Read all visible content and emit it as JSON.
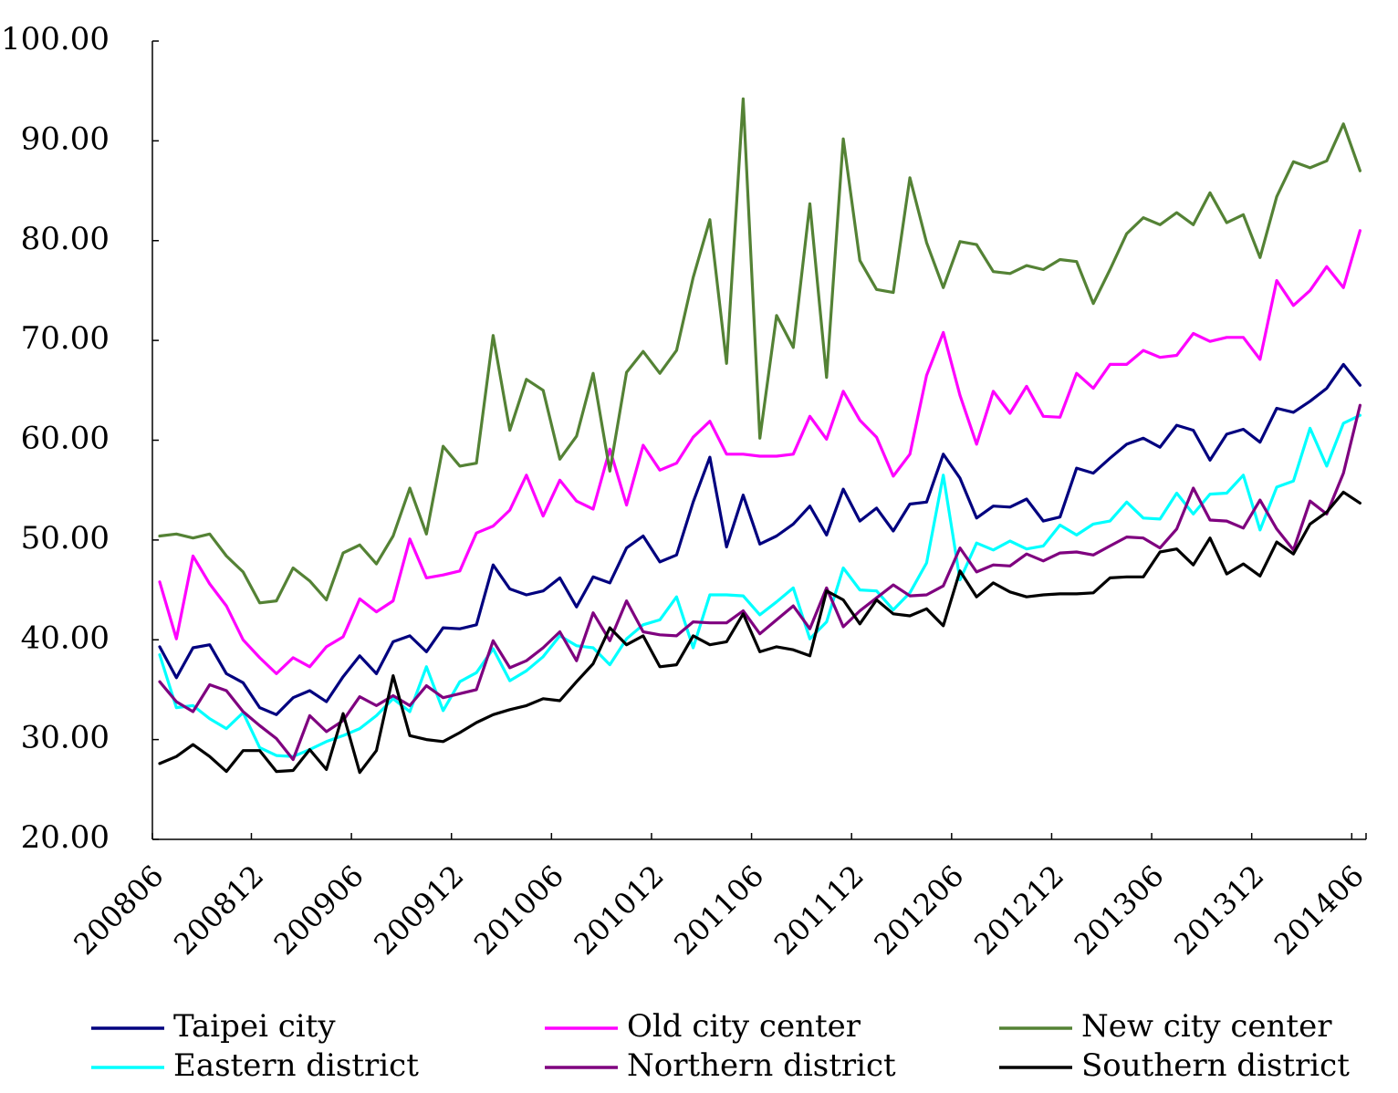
{
  "chart_data": {
    "type": "line",
    "title": "",
    "xlabel": "",
    "ylabel": "",
    "ylim": [
      20,
      100
    ],
    "yticks": [
      "20.00",
      "30.00",
      "40.00",
      "50.00",
      "60.00",
      "70.00",
      "80.00",
      "90.00",
      "100.00"
    ],
    "x_tick_labels": [
      "200806",
      "200812",
      "200906",
      "200912",
      "201006",
      "201012",
      "201106",
      "201112",
      "201206",
      "201212",
      "201306",
      "201312",
      "201406"
    ],
    "x_start": "200806",
    "x_end": "201407",
    "grid": false,
    "legend_position": "bottom",
    "series": [
      {
        "name": "Taipei city",
        "color": "#00007f",
        "values": [
          39.3,
          36.2,
          39.2,
          39.5,
          36.6,
          35.7,
          33.2,
          32.5,
          34.2,
          34.9,
          33.8,
          36.3,
          38.4,
          36.6,
          39.8,
          40.4,
          38.8,
          41.2,
          41.1,
          41.5,
          47.5,
          45.1,
          44.5,
          44.9,
          46.2,
          43.3,
          46.3,
          45.7,
          49.2,
          50.4,
          47.8,
          48.5,
          53.8,
          58.3,
          49.3,
          54.5,
          49.6,
          50.4,
          51.6,
          53.4,
          50.5,
          55.1,
          51.9,
          53.2,
          50.9,
          53.6,
          53.8,
          58.6,
          56.2,
          52.2,
          53.4,
          53.3,
          54.1,
          51.9,
          52.3,
          57.2,
          56.7,
          58.2,
          59.6,
          60.2,
          59.3,
          61.5,
          61.0,
          58.0,
          60.6,
          61.1,
          59.8,
          63.2,
          62.8,
          63.9,
          65.2,
          67.6,
          65.5
        ]
      },
      {
        "name": "Old city center",
        "color": "#ff00ff",
        "values": [
          45.8,
          40.1,
          48.4,
          45.6,
          43.4,
          40.0,
          38.2,
          36.6,
          38.2,
          37.3,
          39.3,
          40.3,
          44.1,
          42.8,
          43.9,
          50.1,
          46.2,
          46.5,
          46.9,
          50.7,
          51.4,
          53.0,
          56.5,
          52.4,
          56.0,
          53.9,
          53.1,
          59.1,
          53.5,
          59.5,
          57.0,
          57.7,
          60.3,
          61.9,
          58.6,
          58.6,
          58.4,
          58.4,
          58.6,
          62.4,
          60.1,
          64.9,
          62.0,
          60.3,
          56.4,
          58.6,
          66.5,
          70.8,
          64.5,
          59.6,
          64.9,
          62.7,
          65.4,
          62.4,
          62.3,
          66.7,
          65.2,
          67.6,
          67.6,
          69.0,
          68.3,
          68.5,
          70.7,
          69.9,
          70.3,
          70.3,
          68.1,
          76.0,
          73.5,
          75.0,
          77.4,
          75.3,
          81.0
        ]
      },
      {
        "name": "New city center",
        "color": "#548235",
        "values": [
          50.4,
          50.6,
          50.2,
          50.6,
          48.4,
          46.8,
          43.7,
          43.9,
          47.2,
          45.9,
          44.0,
          48.7,
          49.5,
          47.6,
          50.4,
          55.2,
          50.6,
          59.4,
          57.4,
          57.7,
          70.5,
          61.0,
          66.1,
          65.0,
          58.1,
          60.4,
          66.7,
          56.9,
          66.8,
          68.9,
          66.7,
          69.0,
          76.3,
          82.1,
          67.7,
          94.2,
          60.2,
          72.5,
          69.3,
          83.7,
          66.3,
          90.2,
          78.0,
          75.1,
          74.8,
          86.3,
          79.8,
          75.3,
          79.9,
          79.6,
          76.9,
          76.7,
          77.5,
          77.1,
          78.1,
          77.9,
          73.7,
          77.1,
          80.7,
          82.3,
          81.6,
          82.8,
          81.6,
          84.8,
          81.8,
          82.6,
          78.3,
          84.4,
          87.9,
          87.3,
          88.0,
          91.7,
          87.0
        ]
      },
      {
        "name": "Eastern district",
        "color": "#00ffff",
        "values": [
          38.5,
          33.2,
          33.4,
          32.1,
          31.1,
          32.7,
          29.2,
          28.4,
          28.3,
          29.0,
          29.8,
          30.4,
          31.1,
          32.4,
          34.1,
          32.8,
          37.3,
          32.9,
          35.8,
          36.7,
          39.1,
          35.9,
          36.9,
          38.3,
          40.4,
          39.4,
          39.2,
          37.5,
          40.1,
          41.5,
          42.0,
          44.3,
          39.2,
          44.5,
          44.5,
          44.4,
          42.5,
          43.8,
          45.2,
          40.1,
          41.8,
          47.2,
          45.0,
          44.9,
          43.0,
          44.7,
          47.7,
          56.5,
          46.0,
          49.7,
          49.0,
          49.9,
          49.1,
          49.4,
          51.5,
          50.5,
          51.6,
          51.9,
          53.8,
          52.2,
          52.1,
          54.7,
          52.6,
          54.6,
          54.7,
          56.5,
          51.0,
          55.3,
          55.9,
          61.2,
          57.4,
          61.7,
          62.5
        ]
      },
      {
        "name": "Northern district",
        "color": "#7f007f",
        "values": [
          35.8,
          33.8,
          32.8,
          35.5,
          34.9,
          32.8,
          31.4,
          30.1,
          28.0,
          32.4,
          30.8,
          31.9,
          34.3,
          33.4,
          34.4,
          33.4,
          35.4,
          34.2,
          34.6,
          35.0,
          39.9,
          37.2,
          37.9,
          39.2,
          40.8,
          37.9,
          42.7,
          39.9,
          43.9,
          40.8,
          40.5,
          40.4,
          41.8,
          41.7,
          41.7,
          42.9,
          40.6,
          42.0,
          43.4,
          41.1,
          45.2,
          41.3,
          42.9,
          44.2,
          45.5,
          44.4,
          44.5,
          45.4,
          49.2,
          46.8,
          47.5,
          47.4,
          48.6,
          47.9,
          48.7,
          48.8,
          48.5,
          49.4,
          50.3,
          50.2,
          49.2,
          51.1,
          55.2,
          52.0,
          51.9,
          51.2,
          54.0,
          51.1,
          49.0,
          53.9,
          52.6,
          56.7,
          63.5
        ]
      },
      {
        "name": "Southern district",
        "color": "#000000",
        "values": [
          27.6,
          28.3,
          29.5,
          28.3,
          26.8,
          28.9,
          28.9,
          26.8,
          26.9,
          29.0,
          27.0,
          32.6,
          26.7,
          28.9,
          36.4,
          30.4,
          30.0,
          29.8,
          30.7,
          31.7,
          32.5,
          33.0,
          33.4,
          34.1,
          33.9,
          35.8,
          37.6,
          41.2,
          39.5,
          40.4,
          37.3,
          37.5,
          40.4,
          39.5,
          39.8,
          42.6,
          38.8,
          39.3,
          39.0,
          38.4,
          44.9,
          44.0,
          41.6,
          44.0,
          42.6,
          42.4,
          43.1,
          41.4,
          46.9,
          44.3,
          45.7,
          44.8,
          44.3,
          44.5,
          44.6,
          44.6,
          44.7,
          46.2,
          46.3,
          46.3,
          48.8,
          49.1,
          47.5,
          50.2,
          46.6,
          47.6,
          46.4,
          49.8,
          48.6,
          51.6,
          52.8,
          54.8,
          53.7
        ]
      }
    ]
  }
}
